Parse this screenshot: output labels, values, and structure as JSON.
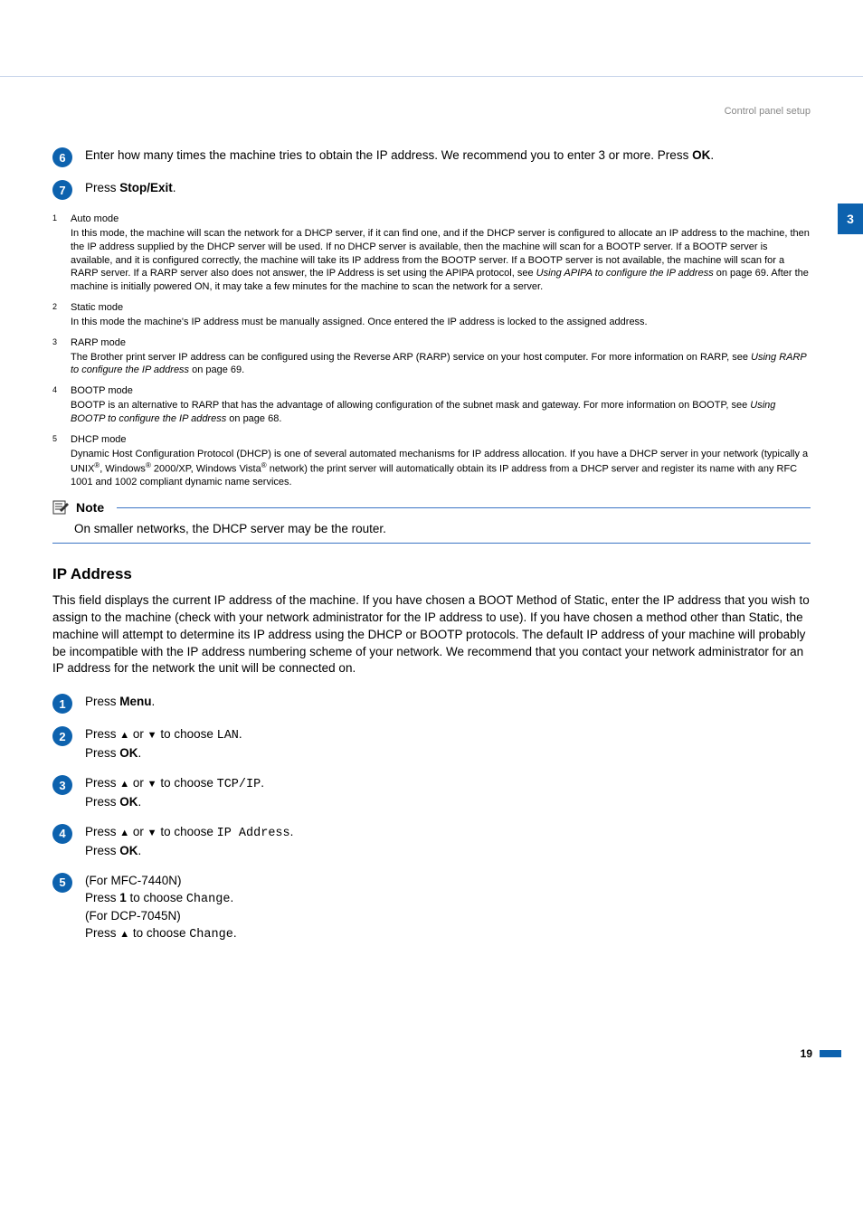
{
  "breadcrumb": "Control panel setup",
  "side_tab": "3",
  "colors": {
    "accent": "#0d62ae",
    "rule": "#3b74c4",
    "muted": "#888"
  },
  "steps_a": [
    {
      "n": "6",
      "html": "Enter how many times the machine tries to obtain the IP address. We recommend you to enter 3 or more. Press <b>OK</b>."
    },
    {
      "n": "7",
      "html": "Press <b>Stop/Exit</b>."
    }
  ],
  "footnotes": [
    {
      "sup": "1",
      "title": "Auto mode",
      "body": "In this mode, the machine will scan the network for a DHCP server, if it can find one, and if the DHCP server is configured to allocate an IP address to the machine, then the IP address supplied by the DHCP server will be used. If no DHCP server is available, then the machine will scan for a BOOTP server. If a BOOTP server is available, and it is configured correctly, the machine will take its IP address from the BOOTP server. If a BOOTP server is not available, the machine will scan for a RARP server. If a RARP server also does not answer, the IP Address is set using the APIPA protocol, see <i>Using APIPA to configure the IP address</i> on page 69. After the machine is initially powered ON, it may take a few minutes for the machine to scan the network for a server."
    },
    {
      "sup": "2",
      "title": "Static mode",
      "body": "In this mode the machine's IP address must be manually assigned. Once entered the IP address is locked to the assigned address."
    },
    {
      "sup": "3",
      "title": "RARP mode",
      "body": "The Brother print server IP address can be configured using the Reverse ARP (RARP) service on your host computer. For more information on RARP, see <i>Using RARP to configure the IP address</i> on page 69."
    },
    {
      "sup": "4",
      "title": "BOOTP mode",
      "body": "BOOTP is an alternative to RARP that has the advantage of allowing configuration of the subnet mask and gateway. For more information on BOOTP, see <i>Using BOOTP to configure the IP address</i> on page 68."
    },
    {
      "sup": "5",
      "title": "DHCP mode",
      "body": "Dynamic Host Configuration Protocol (DHCP) is one of several automated mechanisms for IP address allocation. If you have a DHCP server in your network (typically a UNIX<span class=\"supreg\">®</span>, Windows<span class=\"supreg\">®</span> 2000/XP, Windows Vista<span class=\"supreg\">®</span> network) the print server will automatically obtain its IP address from a DHCP server and register its name with any RFC 1001 and 1002 compliant dynamic name services."
    }
  ],
  "note": {
    "title": "Note",
    "text": "On smaller networks, the DHCP server may be the router."
  },
  "ip_section": {
    "heading": "IP Address",
    "paragraph": "This field displays the current IP address of the machine. If you have chosen a BOOT Method of Static, enter the IP address that you wish to assign to the machine (check with your network administrator for the IP address to use). If you have chosen a method other than Static, the machine will attempt to determine its IP address using the DHCP or BOOTP protocols. The default IP address of your machine will probably be incompatible with the IP address numbering scheme of your network. We recommend that you contact your network administrator for an IP address for the network the unit will be connected on."
  },
  "steps_b": [
    {
      "n": "1",
      "html": "Press <b>Menu</b>."
    },
    {
      "n": "2",
      "html": "Press <b><span class=\"arrow\">▲</span></b> or <b><span class=\"arrow\">▼</span></b> to choose <span class=\"mono\">LAN</span>.<br>Press <b>OK</b>."
    },
    {
      "n": "3",
      "html": "Press <b><span class=\"arrow\">▲</span></b> or <b><span class=\"arrow\">▼</span></b> to choose <span class=\"mono\">TCP/IP</span>.<br>Press <b>OK</b>."
    },
    {
      "n": "4",
      "html": "Press <b><span class=\"arrow\">▲</span></b> or <b><span class=\"arrow\">▼</span></b> to choose <span class=\"mono\">IP Address</span>.<br>Press <b>OK</b>."
    },
    {
      "n": "5",
      "html": "(For MFC-7440N)<br>Press <b>1</b> to choose <span class=\"mono\">Change</span>.<br>(For DCP-7045N)<br>Press <b><span class=\"arrow\">▲</span></b> to choose <span class=\"mono\">Change</span>."
    }
  ],
  "page_number": "19"
}
